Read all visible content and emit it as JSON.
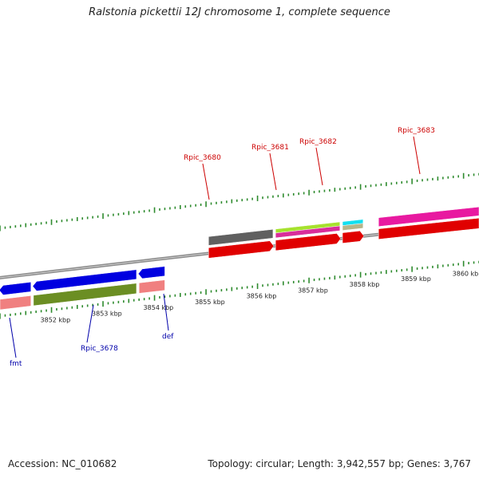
{
  "header": {
    "title": "Ralstonia pickettii 12J chromosome 1, complete sequence"
  },
  "footer": {
    "accession": "Accession: NC_010682",
    "summary": "Topology: circular; Length: 3,942,557 bp; Genes: 3,767"
  },
  "colors": {
    "backbone": "#8c8c8c",
    "tick": "#2e8b2e",
    "forward_label": "#cc0000",
    "reverse_label": "#0000aa"
  },
  "scale": {
    "start_kbp": 3851.0,
    "end_kbp": 3860.3,
    "tick_labels": [
      {
        "text": "3852 kbp",
        "kbp": 3852
      },
      {
        "text": "3853 kbp",
        "kbp": 3853
      },
      {
        "text": "3854 kbp",
        "kbp": 3854
      },
      {
        "text": "3855 kbp",
        "kbp": 3855
      },
      {
        "text": "3856 kbp",
        "kbp": 3856
      },
      {
        "text": "3857 kbp",
        "kbp": 3857
      },
      {
        "text": "3858 kbp",
        "kbp": 3858
      },
      {
        "text": "3859 kbp",
        "kbp": 3859
      },
      {
        "text": "3860 kbp",
        "kbp": 3860
      }
    ]
  },
  "forward_genes": [
    {
      "label": "Rpic_3680",
      "start_kbp": 3855.05,
      "end_kbp": 3856.3,
      "top_color": "#606060",
      "bottom_color": "#e00000"
    },
    {
      "label": "Rpic_3681",
      "start_kbp": 3856.35,
      "end_kbp": 3857.6,
      "top_color": "#a6e22e",
      "second_color": "#d92d9a",
      "bottom_color": "#e00000"
    },
    {
      "label": "Rpic_3682",
      "start_kbp": 3857.65,
      "end_kbp": 3858.05,
      "top_color": "#12e0f0",
      "second_color": "#b5b58a",
      "bottom_color": "#e00000"
    },
    {
      "label": "Rpic_3683",
      "start_kbp": 3858.35,
      "end_kbp": 3860.3,
      "top_color": "#e81aa0",
      "bottom_color": "#e00000"
    }
  ],
  "reverse_genes": [
    {
      "label": "fmt",
      "start_kbp": 3851.0,
      "end_kbp": 3851.6,
      "top_color": "#0000e0",
      "bottom_color": "#f08080"
    },
    {
      "label": "Rpic_3678",
      "start_kbp": 3851.65,
      "end_kbp": 3853.65,
      "top_color": "#0000e0",
      "bottom_color": "#6b8e23"
    },
    {
      "label": "def",
      "start_kbp": 3853.7,
      "end_kbp": 3854.2,
      "top_color": "#0000e0",
      "bottom_color": "#f08080"
    }
  ]
}
